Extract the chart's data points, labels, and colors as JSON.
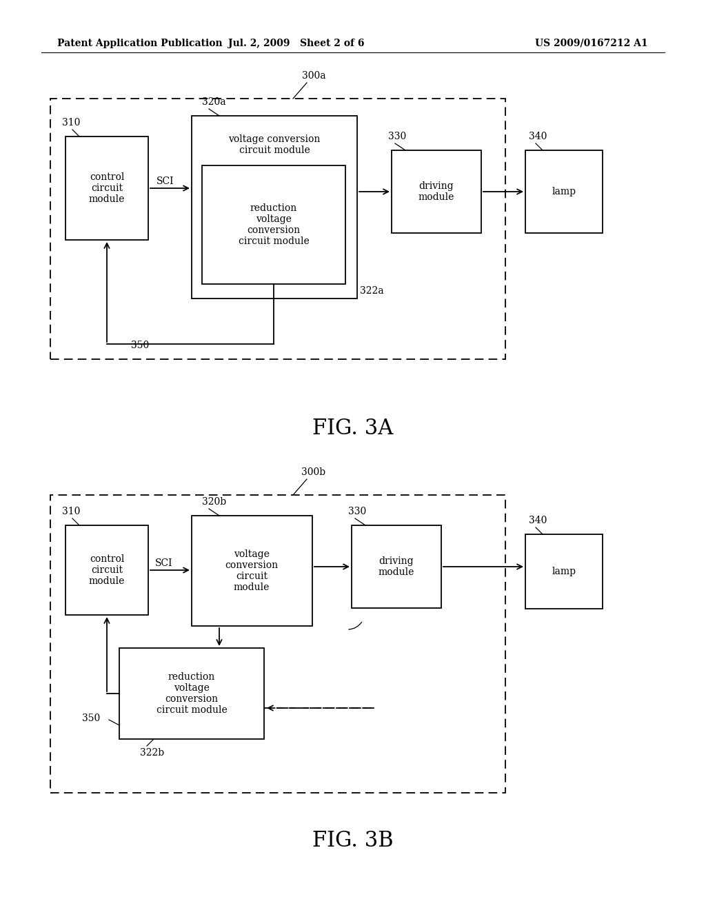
{
  "bg_color": "#ffffff",
  "text_color": "#000000",
  "header_left": "Patent Application Publication",
  "header_mid": "Jul. 2, 2009   Sheet 2 of 6",
  "header_right": "US 2009/0167212 A1",
  "fig3a_label": "FIG. 3A",
  "fig3b_label": "FIG. 3B"
}
